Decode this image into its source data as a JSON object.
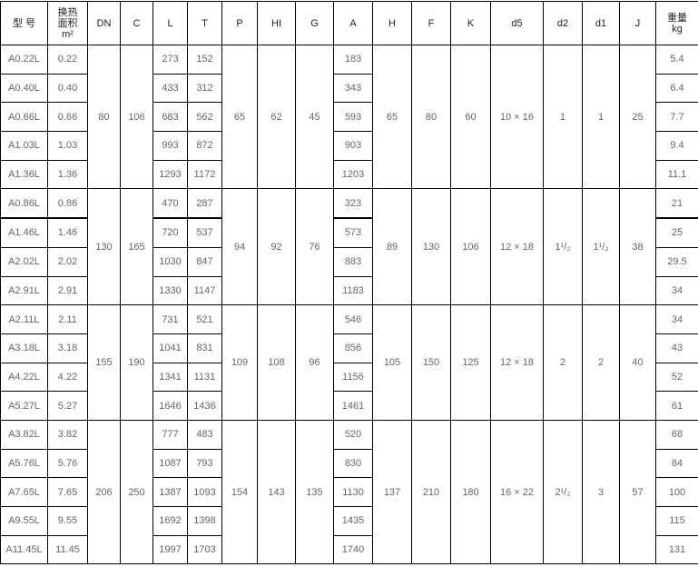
{
  "headers": {
    "model": "型 号",
    "area_line1": "换热",
    "area_line2": "面积",
    "area_unit": "m²",
    "DN": "DN",
    "C": "C",
    "L": "L",
    "T": "T",
    "P": "P",
    "HI": "HI",
    "G": "G",
    "A": "A",
    "H": "H",
    "F": "F",
    "K": "K",
    "d5": "d5",
    "d2": "d2",
    "d1": "d1",
    "J": "J",
    "weight_line1": "重量",
    "weight_unit": "kg"
  },
  "groups": [
    {
      "DN": "80",
      "C": "106",
      "P": "65",
      "HI": "62",
      "G": "45",
      "H": "65",
      "F": "80",
      "K": "60",
      "d5": "10 × 16",
      "d2": "1",
      "d1": "1",
      "J": "25",
      "rows": [
        {
          "model": "A0.22L",
          "area": "0.22",
          "L": "273",
          "T": "152",
          "A": "183",
          "weight": "5.4"
        },
        {
          "model": "A0.40L",
          "area": "0.40",
          "L": "433",
          "T": "312",
          "A": "343",
          "weight": "6.4"
        },
        {
          "model": "A0.66L",
          "area": "0.66",
          "L": "683",
          "T": "562",
          "A": "593",
          "weight": "7.7"
        },
        {
          "model": "A1.03L",
          "area": "1.03",
          "L": "993",
          "T": "872",
          "A": "903",
          "weight": "9.4"
        },
        {
          "model": "A1.36L",
          "area": "1.36",
          "L": "1293",
          "T": "1172",
          "A": "1203",
          "weight": "11.1"
        }
      ]
    },
    {
      "DN": "130",
      "C": "165",
      "P": "94",
      "HI": "92",
      "G": "76",
      "H": "89",
      "F": "130",
      "K": "106",
      "d5": "12 × 18",
      "d2": "1¹/₂",
      "d1": "1¹/₂",
      "J": "38",
      "rows": [
        {
          "model": "A0.86L",
          "area": "0.86",
          "L": "470",
          "T": "287",
          "A": "323",
          "weight": "21"
        },
        {
          "model": "A1.46L",
          "area": "1.46",
          "L": "720",
          "T": "537",
          "A": "573",
          "weight": "25"
        },
        {
          "model": "A2.02L",
          "area": "2.02",
          "L": "1030",
          "T": "847",
          "A": "883",
          "weight": "29.5"
        },
        {
          "model": "A2.91L",
          "area": "2.91",
          "L": "1330",
          "T": "1147",
          "A": "1183",
          "weight": "34"
        }
      ]
    },
    {
      "DN": "155",
      "C": "190",
      "P": "109",
      "HI": "108",
      "G": "96",
      "H": "105",
      "F": "150",
      "K": "125",
      "d5": "12 × 18",
      "d2": "2",
      "d1": "2",
      "J": "40",
      "rows": [
        {
          "model": "A2.11L",
          "area": "2.11",
          "L": "731",
          "T": "521",
          "A": "546",
          "weight": "34"
        },
        {
          "model": "A3.18L",
          "area": "3.18",
          "L": "1041",
          "T": "831",
          "A": "856",
          "weight": "43"
        },
        {
          "model": "A4.22L",
          "area": "4.22",
          "L": "1341",
          "T": "1131",
          "A": "1156",
          "weight": "52"
        },
        {
          "model": "A5.27L",
          "area": "5.27",
          "L": "1646",
          "T": "1436",
          "A": "1461",
          "weight": "61"
        }
      ]
    },
    {
      "DN": "206",
      "C": "250",
      "P": "154",
      "HI": "143",
      "G": "135",
      "H": "137",
      "F": "210",
      "K": "180",
      "d5": "16 × 22",
      "d2": "2¹/₂",
      "d1": "3",
      "J": "57",
      "rows": [
        {
          "model": "A3.82L",
          "area": "3.82",
          "L": "777",
          "T": "483",
          "A": "520",
          "weight": "68"
        },
        {
          "model": "A5.76L",
          "area": "5.76",
          "L": "1087",
          "T": "793",
          "A": "830",
          "weight": "84"
        },
        {
          "model": "A7.65L",
          "area": "7.65",
          "L": "1387",
          "T": "1093",
          "A": "1130",
          "weight": "100"
        },
        {
          "model": "A9.55L",
          "area": "9.55",
          "L": "1692",
          "T": "1398",
          "A": "1435",
          "weight": "115"
        },
        {
          "model": "A11.45L",
          "area": "11.45",
          "L": "1997",
          "T": "1703",
          "A": "1740",
          "weight": "131"
        }
      ]
    }
  ]
}
